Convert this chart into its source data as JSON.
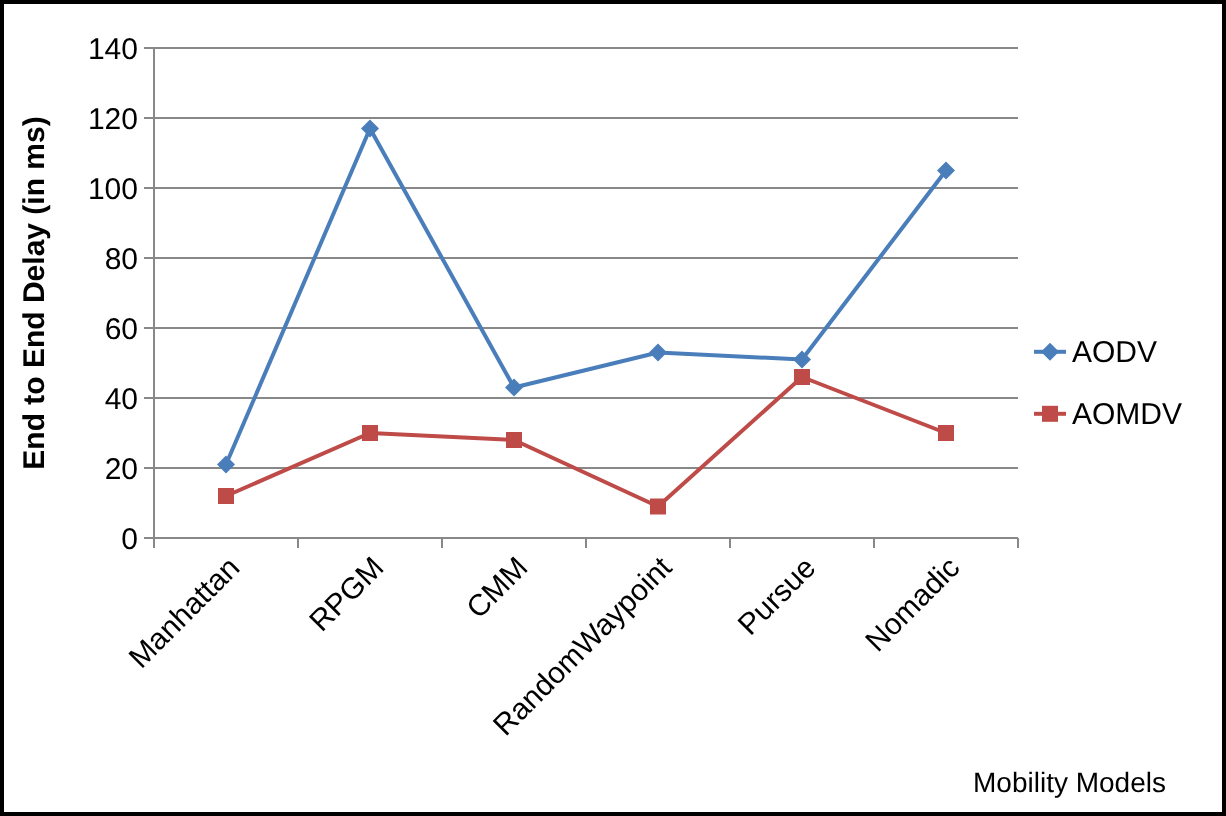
{
  "chart_data": {
    "type": "line",
    "xlabel": "Mobility Models",
    "ylabel": "End to End Delay (in ms)",
    "categories": [
      "Manhattan",
      "RPGM",
      "CMM",
      "RandomWaypoint",
      "Pursue",
      "Nomadic"
    ],
    "series": [
      {
        "name": "AODV",
        "color": "#4a7ebb",
        "marker": "diamond",
        "values": [
          21,
          117,
          43,
          53,
          51,
          105
        ]
      },
      {
        "name": "AOMDV",
        "color": "#be4b48",
        "marker": "square",
        "values": [
          12,
          30,
          28,
          9,
          46,
          30
        ]
      }
    ],
    "ylim": [
      0,
      140
    ],
    "yticks": [
      0,
      20,
      40,
      60,
      80,
      100,
      120,
      140
    ],
    "grid": "y",
    "legend": "right"
  }
}
